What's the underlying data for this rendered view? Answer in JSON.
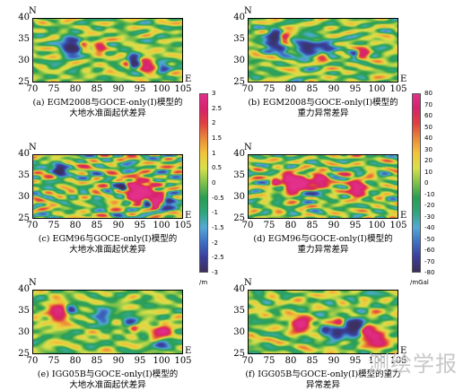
{
  "chart_data": [
    {
      "id": "a",
      "type": "heatmap",
      "x_ticks": [
        "70",
        "75",
        "80",
        "85",
        "90",
        "95",
        "100",
        "105"
      ],
      "y_ticks": [
        "40",
        "35",
        "30",
        "25"
      ],
      "xlim": [
        70,
        105
      ],
      "ylim": [
        25,
        40
      ],
      "north_label": "N",
      "east_label": "E",
      "caption": [
        "(a) EGM2008与GOCE-only(Ⅰ)模型的",
        "大地水准面起伏差异"
      ],
      "colorbar": "geoid",
      "scale": 0.9
    },
    {
      "id": "b",
      "type": "heatmap",
      "x_ticks": [
        "70",
        "75",
        "80",
        "85",
        "90",
        "95",
        "100",
        "105"
      ],
      "y_ticks": [
        "40",
        "35",
        "30",
        "25"
      ],
      "xlim": [
        70,
        105
      ],
      "ylim": [
        25,
        40
      ],
      "north_label": "N",
      "east_label": "E",
      "caption": [
        "(b) EGM2008与GOCE-only(Ⅰ)模型的",
        "重力异常差异"
      ],
      "colorbar": "gravity",
      "scale": 0.9
    },
    {
      "id": "c",
      "type": "heatmap",
      "x_ticks": [
        "70",
        "75",
        "80",
        "85",
        "90",
        "95",
        "100",
        "105"
      ],
      "y_ticks": [
        "40",
        "35",
        "30",
        "25"
      ],
      "xlim": [
        70,
        105
      ],
      "ylim": [
        25,
        40
      ],
      "north_label": "N",
      "east_label": "E",
      "caption": [
        "(c) EGM96与GOCE-only(Ⅰ)模型的",
        "大地水准面起伏差异"
      ],
      "colorbar": "geoid",
      "scale": 1.6
    },
    {
      "id": "d",
      "type": "heatmap",
      "x_ticks": [
        "70",
        "75",
        "80",
        "85",
        "90",
        "95",
        "100",
        "105"
      ],
      "y_ticks": [
        "40",
        "35",
        "30",
        "25"
      ],
      "xlim": [
        70,
        105
      ],
      "ylim": [
        25,
        40
      ],
      "north_label": "N",
      "east_label": "E",
      "caption": [
        "(d) EGM96与GOCE-only(Ⅰ)模型的",
        "重力异常差异"
      ],
      "colorbar": "gravity",
      "scale": 1.3
    },
    {
      "id": "e",
      "type": "heatmap",
      "x_ticks": [
        "70",
        "75",
        "80",
        "85",
        "90",
        "95",
        "100",
        "105"
      ],
      "y_ticks": [
        "40",
        "35",
        "30",
        "25"
      ],
      "xlim": [
        70,
        105
      ],
      "ylim": [
        25,
        40
      ],
      "north_label": "N",
      "east_label": "E",
      "caption": [
        "(e) IGG05B与GOCE-only(Ⅰ)模型的",
        "大地水准面起伏差异"
      ],
      "colorbar": "geoid",
      "scale": 0.8
    },
    {
      "id": "f",
      "type": "heatmap",
      "x_ticks": [
        "70",
        "75",
        "80",
        "85",
        "90",
        "95",
        "100",
        "105"
      ],
      "y_ticks": [
        "40",
        "35",
        "30",
        "25"
      ],
      "xlim": [
        70,
        105
      ],
      "ylim": [
        25,
        40
      ],
      "north_label": "N",
      "east_label": "E",
      "caption": [
        "(f) IGG05B与GOCE-only(Ⅰ)模型的重力",
        "异常差异"
      ],
      "colorbar": "gravity",
      "scale": 0.9
    }
  ],
  "colorbars": {
    "geoid": {
      "labels": [
        "3",
        "2.5",
        "2",
        "1.5",
        "1",
        "0.5",
        "0",
        "-0.5",
        "-1",
        "-1.5",
        "-2",
        "-2.5",
        "-3"
      ],
      "unit": "/m",
      "range": [
        -3,
        3
      ]
    },
    "gravity": {
      "labels": [
        "80",
        "70",
        "60",
        "50",
        "40",
        "30",
        "20",
        "10",
        "0",
        "-10",
        "-20",
        "-30",
        "-40",
        "-50",
        "-60",
        "-70",
        "-80"
      ],
      "unit": "/mGal",
      "range": [
        -80,
        80
      ]
    }
  },
  "colormap": [
    "#3c2f5b",
    "#3a3f9a",
    "#3e6fc4",
    "#53a9d6",
    "#2fa67b",
    "#2a9d52",
    "#7fc14a",
    "#d9e04a",
    "#f2c43a",
    "#e98a3a",
    "#e0413f",
    "#d7236a",
    "#e2308c"
  ],
  "watermark": "测绘学报"
}
